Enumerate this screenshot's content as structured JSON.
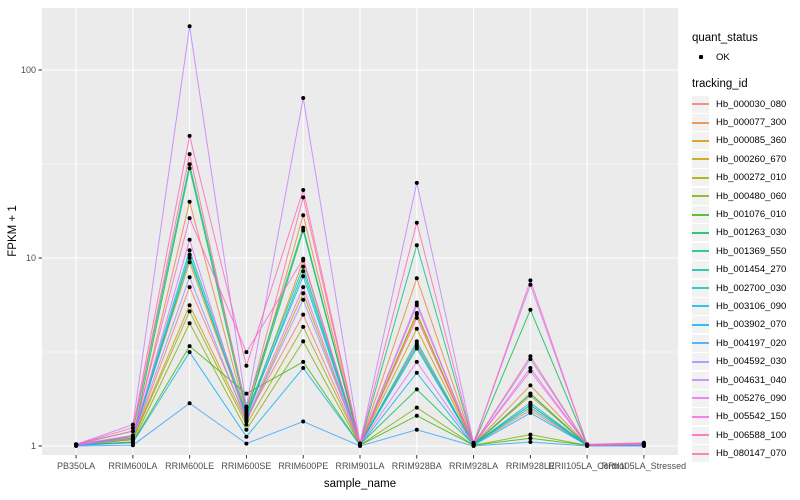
{
  "chart_data": {
    "type": "line",
    "title": "",
    "xlabel": "sample_name",
    "ylabel": "FPKM + 1",
    "y_scale": "log10",
    "ylim": [
      0.9,
      214
    ],
    "y_ticks": [
      1,
      10,
      100
    ],
    "y_tick_labels": [
      "1",
      "10",
      "100"
    ],
    "y_minor_ticks": [
      3.162,
      31.62
    ],
    "grid": true,
    "legend_position": "right",
    "categories": [
      "PB350LA",
      "RRIM600LA",
      "RRIM600LE",
      "RRIM600SE",
      "RRIM600PE",
      "RRIM901LA",
      "RRIM928BA",
      "RRIM928LA",
      "RRIM928LE",
      "RRII105LA_Control",
      "RRII105LA_Stressed"
    ],
    "series": [
      {
        "name": "Hb_000030_080",
        "color": "#F8766D",
        "values": [
          1.01,
          1.08,
          7.0,
          1.4,
          5.0,
          1.02,
          3.5,
          1.02,
          1.55,
          1.01,
          1.02
        ]
      },
      {
        "name": "Hb_000077_300",
        "color": "#EA8331",
        "values": [
          1.01,
          1.1,
          19.9,
          1.45,
          16.9,
          1.02,
          7.8,
          1.02,
          2.1,
          1.01,
          1.02
        ]
      },
      {
        "name": "Hb_000085_360",
        "color": "#D89000",
        "values": [
          1.01,
          1.12,
          9.5,
          1.42,
          9.7,
          1.02,
          5.0,
          1.02,
          1.85,
          1.01,
          1.02
        ]
      },
      {
        "name": "Hb_000260_670",
        "color": "#C09B00",
        "values": [
          1.01,
          1.09,
          5.6,
          1.35,
          6.5,
          1.02,
          4.2,
          1.02,
          1.65,
          1.01,
          1.02
        ]
      },
      {
        "name": "Hb_000272_010",
        "color": "#A3A500",
        "values": [
          1.01,
          1.08,
          5.2,
          1.3,
          4.3,
          1.02,
          5.1,
          1.01,
          1.9,
          1.01,
          1.02
        ]
      },
      {
        "name": "Hb_000480_060",
        "color": "#7CAE00",
        "values": [
          1.01,
          1.05,
          4.5,
          1.22,
          3.6,
          1.01,
          1.6,
          1.01,
          1.15,
          1.01,
          1.01
        ]
      },
      {
        "name": "Hb_001076_010",
        "color": "#39B600",
        "values": [
          1.01,
          1.05,
          3.4,
          1.9,
          2.8,
          1.01,
          1.45,
          1.01,
          1.1,
          1.01,
          1.01
        ]
      },
      {
        "name": "Hb_001263_030",
        "color": "#00BB4E",
        "values": [
          1.01,
          1.1,
          30.0,
          1.5,
          14.0,
          1.02,
          2.0,
          1.02,
          5.3,
          1.01,
          1.02
        ]
      },
      {
        "name": "Hb_001369_550",
        "color": "#00BF7D",
        "values": [
          1.02,
          1.2,
          31.5,
          1.6,
          14.5,
          1.02,
          11.7,
          1.02,
          1.9,
          1.01,
          1.02
        ]
      },
      {
        "name": "Hb_001454_270",
        "color": "#00C1A3",
        "values": [
          1.01,
          1.1,
          10.4,
          1.42,
          8.5,
          1.02,
          3.4,
          1.02,
          1.6,
          1.01,
          1.02
        ]
      },
      {
        "name": "Hb_002700_030",
        "color": "#00BFC4",
        "values": [
          1.01,
          1.13,
          11.0,
          1.48,
          9.0,
          1.02,
          3.6,
          1.02,
          1.7,
          1.01,
          1.02
        ]
      },
      {
        "name": "Hb_003106_090",
        "color": "#00BADE",
        "values": [
          1.01,
          1.1,
          10.0,
          1.45,
          8.0,
          1.02,
          3.3,
          1.02,
          1.65,
          1.01,
          1.02
        ]
      },
      {
        "name": "Hb_003902_070",
        "color": "#00B0F6",
        "values": [
          1.01,
          1.04,
          3.16,
          1.12,
          2.6,
          1.01,
          2.45,
          1.01,
          1.5,
          1.01,
          1.01
        ]
      },
      {
        "name": "Hb_004197_020",
        "color": "#35A2FF",
        "values": [
          1.0,
          1.01,
          1.69,
          1.03,
          1.35,
          1.0,
          1.22,
          1.0,
          1.05,
          1.0,
          1.0
        ]
      },
      {
        "name": "Hb_004592_030",
        "color": "#9590FF",
        "values": [
          1.01,
          1.1,
          7.9,
          1.35,
          6.0,
          1.02,
          5.6,
          1.02,
          2.9,
          1.01,
          1.02
        ]
      },
      {
        "name": "Hb_004631_040",
        "color": "#C77CFF",
        "values": [
          1.02,
          1.3,
          171.0,
          1.62,
          71.0,
          1.03,
          25.1,
          1.04,
          7.2,
          1.02,
          1.03
        ]
      },
      {
        "name": "Hb_005276_090",
        "color": "#E76BF3",
        "values": [
          1.01,
          1.1,
          12.5,
          1.38,
          7.0,
          1.02,
          2.8,
          1.02,
          2.5,
          1.01,
          1.02
        ]
      },
      {
        "name": "Hb_005542_150",
        "color": "#FA62DB",
        "values": [
          1.02,
          1.14,
          16.3,
          3.16,
          9.9,
          1.02,
          5.8,
          1.02,
          2.6,
          1.01,
          1.03
        ]
      },
      {
        "name": "Hb_006588_100",
        "color": "#FF62BC",
        "values": [
          1.02,
          1.25,
          44.6,
          2.67,
          23.0,
          1.03,
          15.4,
          1.03,
          7.6,
          1.02,
          1.04
        ]
      },
      {
        "name": "Hb_080147_070",
        "color": "#FF6A98",
        "values": [
          1.02,
          1.2,
          35.7,
          1.55,
          21.0,
          1.02,
          4.8,
          1.02,
          3.0,
          1.01,
          1.03
        ]
      }
    ]
  },
  "legend": {
    "quant_status": {
      "title": "quant_status",
      "items": [
        {
          "label": "OK",
          "marker": "point"
        }
      ]
    },
    "tracking_id": {
      "title": "tracking_id"
    }
  },
  "colors": {
    "panel_bg": "#EBEBEB",
    "grid": "#FFFFFF",
    "tick_text": "#4D4D4D",
    "tick_mark": "#333333",
    "point": "#000000",
    "legend_key_bg": "#F2F2F2"
  }
}
